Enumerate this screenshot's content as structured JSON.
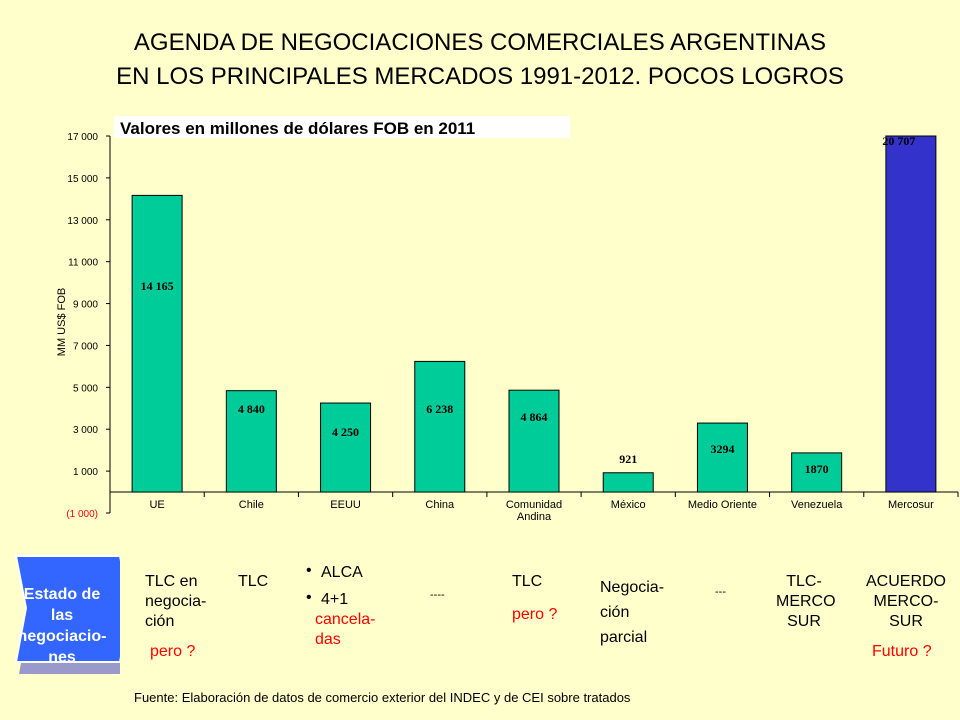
{
  "title_line1": "AGENDA DE NEGOCIACIONES COMERCIALES ARGENTINAS",
  "title_line2": "EN LOS PRINCIPALES MERCADOS 1991-2012.  POCOS LOGROS",
  "colors": {
    "background": "#FFFFCC",
    "bar": "#00CC99",
    "bar_highlight": "#3333CC",
    "status_box": "#3366FF",
    "question": "#FF0000"
  },
  "chart_data": {
    "type": "bar",
    "subtitle": "Valores en millones de dólares FOB en 2011",
    "ylabel": "MM US$ FOB",
    "ylim": [
      -1000,
      17000
    ],
    "yticks": [
      -1000,
      1000,
      3000,
      5000,
      7000,
      9000,
      11000,
      13000,
      15000,
      17000
    ],
    "ytick_labels": [
      "(1 000)",
      "1 000",
      "3 000",
      "5 000",
      "7 000",
      "9 000",
      "11 000",
      "13 000",
      "15 000",
      "17 000"
    ],
    "categories": [
      "UE",
      "Chile",
      "EEUU",
      "China",
      "Comunidad Andina",
      "México",
      "Medio Oriente",
      "Venezuela",
      "Mercosur"
    ],
    "values": [
      14165,
      4840,
      4250,
      6238,
      4864,
      921,
      3294,
      1870,
      20707
    ],
    "data_labels": [
      "14 165",
      "4 840",
      "4 250",
      "6 238",
      "4 864",
      "921",
      "3294",
      "1870",
      "20 707"
    ],
    "highlight_index": 8
  },
  "status": {
    "box_label": "Estado de las negociacio-nes",
    "box_lines": [
      "Estado de",
      "las",
      "negociacio-",
      "nes"
    ],
    "ue": "TLC en\nnegocia-\nción",
    "ue_q": "pero ?",
    "chile": "TLC",
    "eeuu_b1": "ALCA",
    "eeuu_b2": "4+1",
    "eeuu_b2_note": "cancela-\ndas",
    "china": "----",
    "comunidad": "TLC",
    "comunidad_q": "pero ?",
    "mexico": "Negocia-\n ción\nparcial",
    "medio_oriente": "---",
    "venezuela": "TLC-\nMERCO\nSUR",
    "mercosur": "ACUERDO\nMERCO-\nSUR",
    "mercosur_q": "Futuro ?"
  },
  "source": "Fuente:  Elaboración de datos de comercio exterior del INDEC y de CEI sobre tratados"
}
